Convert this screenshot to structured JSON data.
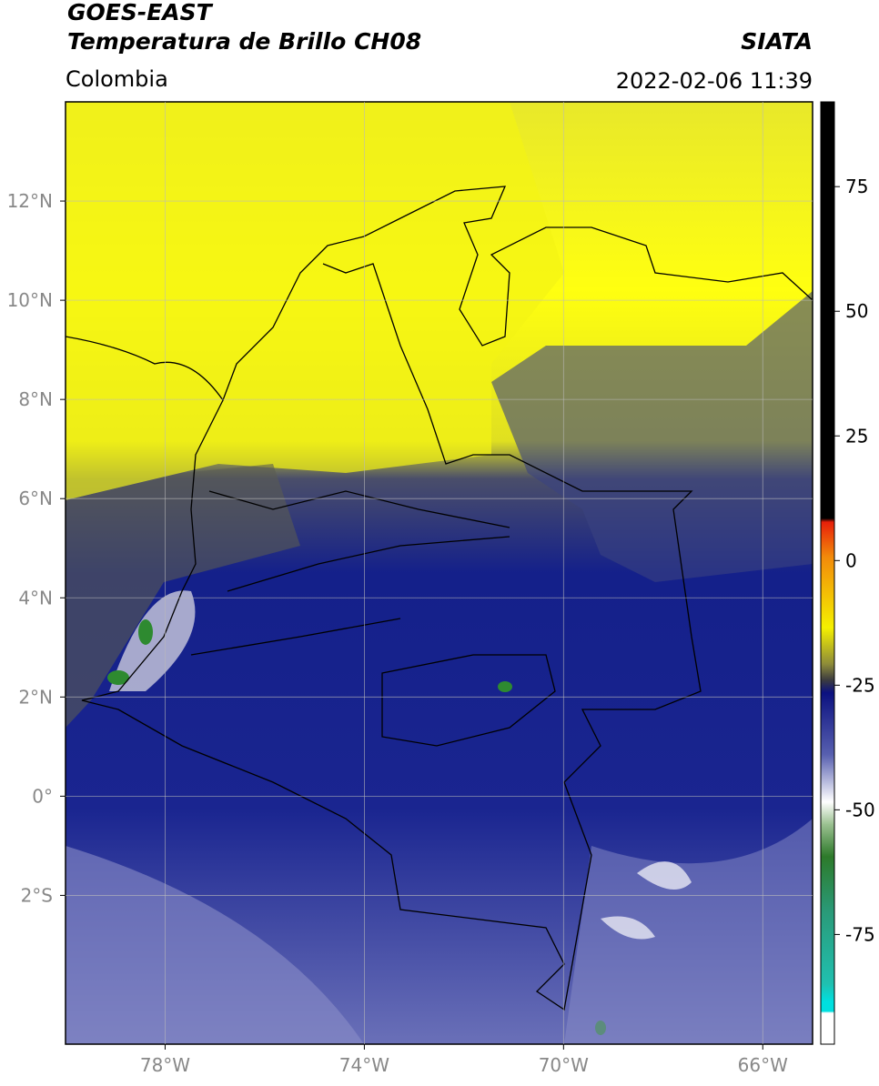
{
  "header": {
    "satellite": "GOES-EAST",
    "product": "Temperatura de Brillo CH08",
    "source": "SIATA",
    "region": "Colombia",
    "datetime": "2022-02-06 11:39"
  },
  "map": {
    "xlim": [
      -80,
      -65
    ],
    "ylim": [
      -5,
      14
    ],
    "xticks": [
      {
        "value": -78,
        "label": "78°W"
      },
      {
        "value": -74,
        "label": "74°W"
      },
      {
        "value": -70,
        "label": "70°W"
      },
      {
        "value": -66,
        "label": "66°W"
      }
    ],
    "yticks": [
      {
        "value": 12,
        "label": "12°N"
      },
      {
        "value": 10,
        "label": "10°N"
      },
      {
        "value": 8,
        "label": "8°N"
      },
      {
        "value": 6,
        "label": "6°N"
      },
      {
        "value": 4,
        "label": "4°N"
      },
      {
        "value": 2,
        "label": "2°N"
      },
      {
        "value": 0,
        "label": "0°"
      },
      {
        "value": -2,
        "label": "2°S"
      }
    ],
    "grid": true
  },
  "colorbar": {
    "lim": [
      -97,
      92
    ],
    "ticks": [
      75,
      50,
      25,
      0,
      -25,
      -50,
      -75
    ]
  }
}
